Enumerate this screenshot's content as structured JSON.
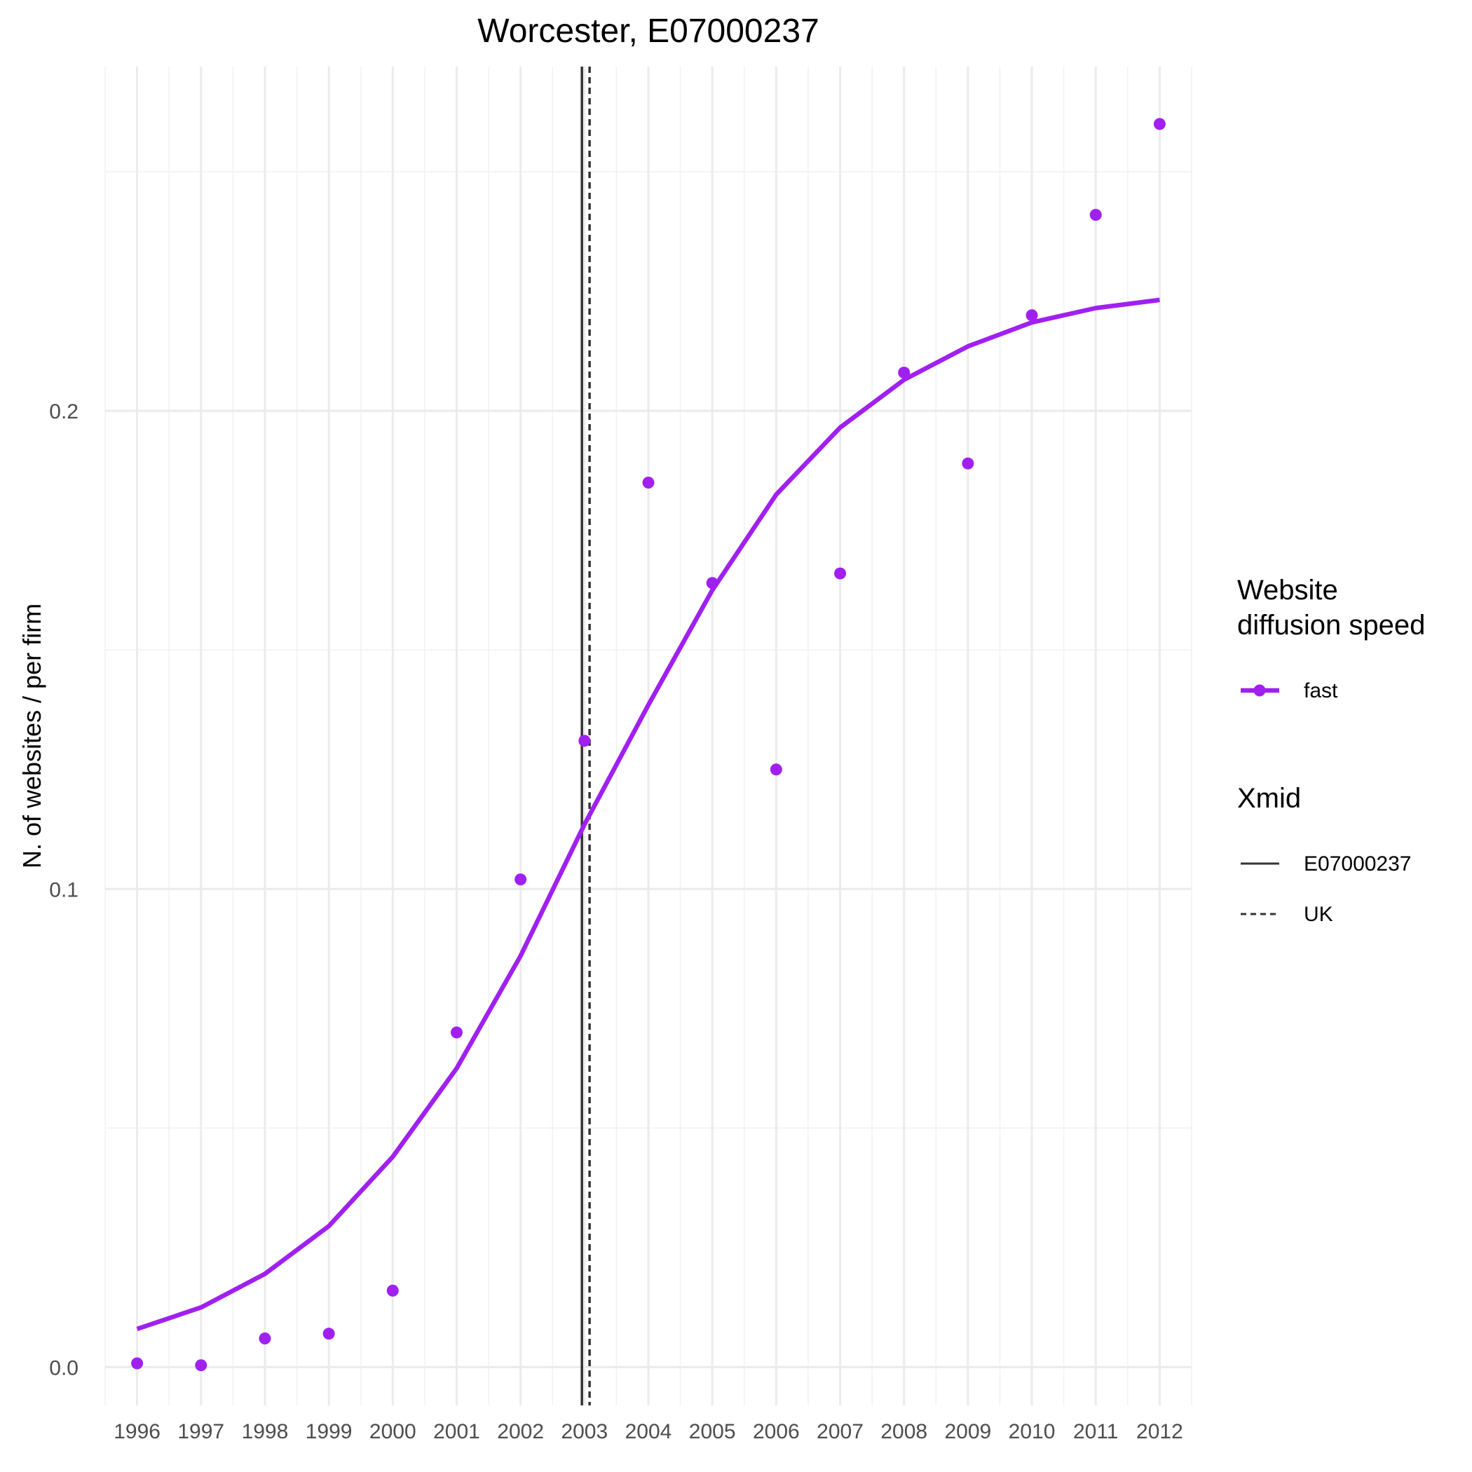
{
  "chart_data": {
    "type": "line",
    "title": "Worcester, E07000237",
    "xlabel": "",
    "ylabel": "N. of websites / per firm",
    "x": [
      1996,
      1997,
      1998,
      1999,
      2000,
      2001,
      2002,
      2003,
      2004,
      2005,
      2006,
      2007,
      2008,
      2009,
      2010,
      2011,
      2012
    ],
    "x_tick_labels": [
      "1996",
      "1997",
      "1998",
      "1999",
      "2000",
      "2001",
      "2002",
      "2003",
      "2004",
      "2005",
      "2006",
      "2007",
      "2008",
      "2009",
      "2010",
      "2011",
      "2012"
    ],
    "y_ticks": [
      0.0,
      0.1,
      0.2
    ],
    "y_tick_labels": [
      "0.0",
      "0.1",
      "0.2"
    ],
    "xlim": [
      1995.5,
      2012.5
    ],
    "ylim": [
      -0.008,
      0.272
    ],
    "grid": true,
    "series": [
      {
        "name": "fast",
        "color": "#a020f0",
        "points": [
          0.0008,
          0.0004,
          0.006,
          0.007,
          0.016,
          0.07,
          0.102,
          0.131,
          0.185,
          0.164,
          0.125,
          0.166,
          0.208,
          0.189,
          0.22,
          0.241,
          0.26
        ],
        "fit": [
          0.008,
          0.0125,
          0.0195,
          0.0295,
          0.044,
          0.0625,
          0.086,
          0.1135,
          0.1385,
          0.1625,
          0.1825,
          0.1965,
          0.2065,
          0.2135,
          0.2185,
          0.2215,
          0.2232
        ]
      }
    ],
    "vlines": [
      {
        "name": "E07000237",
        "x": 2002.96,
        "style": "solid",
        "color": "#333333"
      },
      {
        "name": "UK",
        "x": 2003.08,
        "style": "dashed",
        "color": "#333333"
      }
    ],
    "legend": {
      "position": "right",
      "groups": [
        {
          "title_lines": [
            "Website",
            "diffusion speed"
          ],
          "items": [
            {
              "label": "fast",
              "type": "line-point",
              "color": "#a020f0"
            }
          ]
        },
        {
          "title_lines": [
            "Xmid"
          ],
          "items": [
            {
              "label": "E07000237",
              "type": "solid-line",
              "color": "#333333"
            },
            {
              "label": "UK",
              "type": "dashed-line",
              "color": "#333333"
            }
          ]
        }
      ]
    }
  }
}
